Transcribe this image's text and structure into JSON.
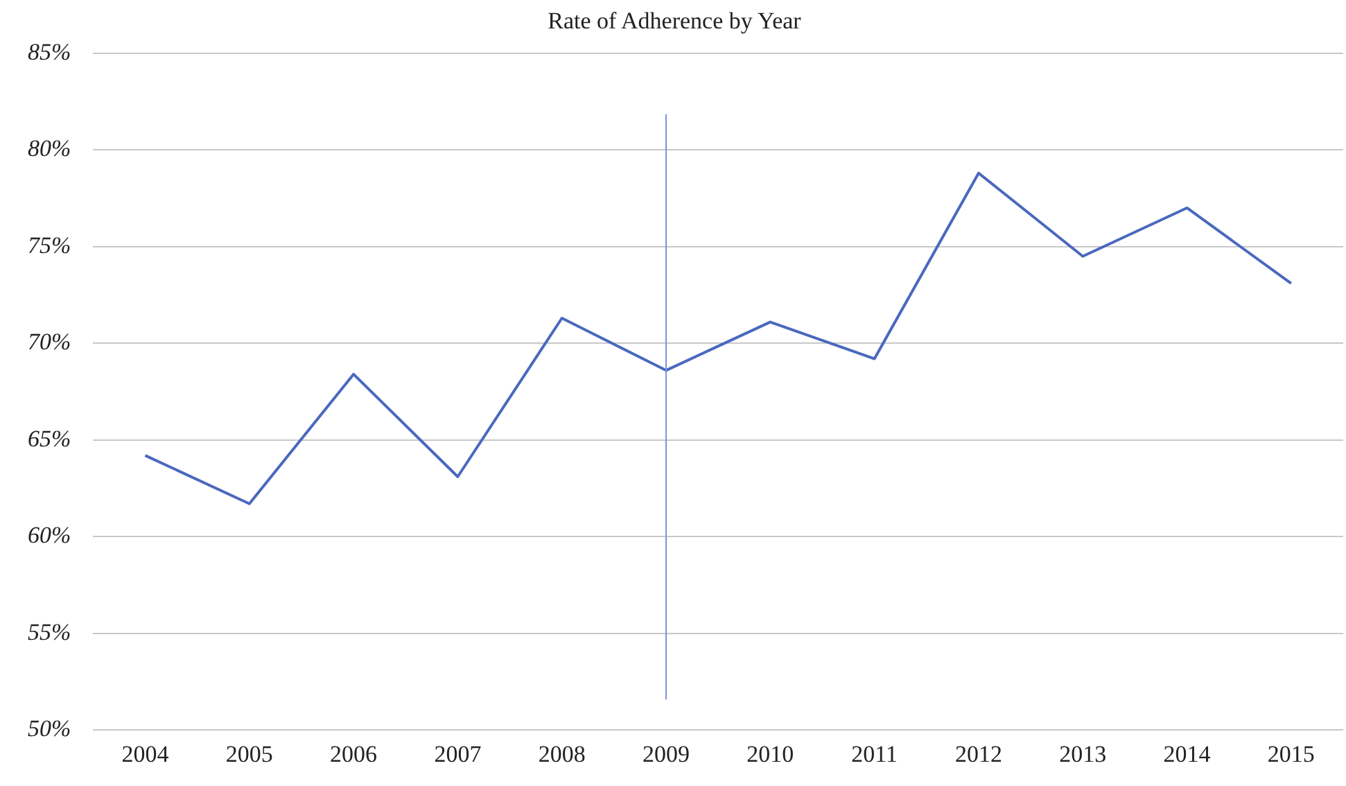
{
  "chart_data": {
    "type": "line",
    "title": "Rate of Adherence by Year",
    "categories": [
      "2004",
      "2005",
      "2006",
      "2007",
      "2008",
      "2009",
      "2010",
      "2011",
      "2012",
      "2013",
      "2014",
      "2015"
    ],
    "series": [
      {
        "color": "#4a68be",
        "values": [
          64.2,
          61.7,
          68.4,
          63.1,
          71.3,
          68.6,
          71.1,
          69.2,
          78.8,
          74.5,
          77.0,
          73.1
        ]
      }
    ],
    "ylim": [
      50,
      85
    ],
    "yticks": [
      {
        "value": 50,
        "label": "50%"
      },
      {
        "value": 55,
        "label": "55%"
      },
      {
        "value": 60,
        "label": "60%"
      },
      {
        "value": 65,
        "label": "65%"
      },
      {
        "value": 70,
        "label": "70%"
      },
      {
        "value": 75,
        "label": "75%"
      },
      {
        "value": 80,
        "label": "80%"
      },
      {
        "value": 85,
        "label": "85%"
      }
    ],
    "ref_lines": [
      {
        "axis": "x",
        "value": "2009",
        "color": "#7a94e0"
      }
    ],
    "grid": "y",
    "legend": false,
    "marker": "none",
    "line_style": "solid"
  }
}
